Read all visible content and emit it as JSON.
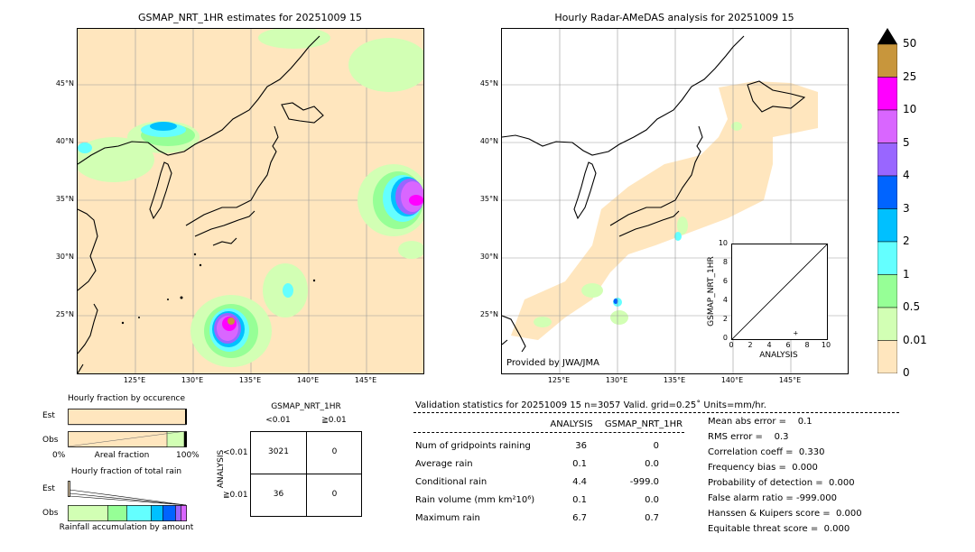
{
  "left_panel": {
    "title": "GSMAP_NRT_1HR estimates for 20251009 15",
    "lat_ticks": [
      "45°N",
      "40°N",
      "35°N",
      "30°N",
      "25°N"
    ],
    "lon_ticks": [
      "125°E",
      "130°E",
      "135°E",
      "140°E",
      "145°E"
    ]
  },
  "right_panel": {
    "title": "Hourly Radar-AMeDAS analysis for 20251009 15",
    "lat_ticks": [
      "45°N",
      "40°N",
      "35°N",
      "30°N",
      "25°N"
    ],
    "lon_ticks": [
      "125°E",
      "130°E",
      "135°E",
      "140°E",
      "145°E"
    ],
    "credit": "Provided by JWA/JMA"
  },
  "colorbar": {
    "labels": [
      "50",
      "25",
      "10",
      "5",
      "4",
      "3",
      "2",
      "1",
      "0.5",
      "0.01",
      "0"
    ],
    "colors": [
      "#c8963c",
      "#ff00ff",
      "#d966ff",
      "#9966ff",
      "#0064ff",
      "#00c0ff",
      "#64ffff",
      "#96ff96",
      "#d2ffb4",
      "#ffe6be"
    ]
  },
  "inset_scatter": {
    "xlabel": "ANALYSIS",
    "ylabel": "GSMAP_NRT_1HR",
    "ticks": [
      "0",
      "2",
      "4",
      "6",
      "8",
      "10"
    ]
  },
  "fraction_occurrence": {
    "title": "Hourly fraction by occurence",
    "row1": "Est",
    "row2": "Obs",
    "x_left": "0%",
    "x_mid": "Areal fraction",
    "x_right": "100%"
  },
  "fraction_total": {
    "title": "Hourly fraction of total rain",
    "row1": "Est",
    "row2": "Obs",
    "xlabel": "Rainfall accumulation by amount"
  },
  "contingency": {
    "title": "GSMAP_NRT_1HR",
    "col1": "<0.01",
    "col2": "≧0.01",
    "side": "ANALYSIS",
    "row1": "<0.01",
    "row2": "≧0.01",
    "cells": [
      "3021",
      "0",
      "36",
      "0"
    ]
  },
  "validation": {
    "header": "Validation statistics for 20251009 15  n=3057 Valid. grid=0.25˚ Units=mm/hr.",
    "col_analysis": "ANALYSIS",
    "col_gsmap": "GSMAP_NRT_1HR",
    "rows": [
      {
        "label": "Num of gridpoints raining",
        "a": "36",
        "g": "0"
      },
      {
        "label": "Average rain",
        "a": "0.1",
        "g": "0.0"
      },
      {
        "label": "Conditional rain",
        "a": "4.4",
        "g": "-999.0"
      },
      {
        "label": "Rain volume (mm km²10⁶)",
        "a": "0.1",
        "g": "0.0"
      },
      {
        "label": "Maximum rain",
        "a": "6.7",
        "g": "0.7"
      }
    ],
    "scores": [
      "Mean abs error =    0.1",
      "RMS error =    0.3",
      "Correlation coeff =  0.330",
      "Frequency bias =  0.000",
      "Probability of detection =  0.000",
      "False alarm ratio = -999.000",
      "Hanssen & Kuipers score =  0.000",
      "Equitable threat score =  0.000"
    ]
  },
  "chart_data": [
    {
      "type": "scatter",
      "title": "",
      "xlabel": "ANALYSIS",
      "ylabel": "GSMAP_NRT_1HR",
      "xlim": [
        0,
        10
      ],
      "ylim": [
        0,
        10
      ],
      "points": [
        {
          "x": 6.7,
          "y": 0.7
        }
      ]
    },
    {
      "type": "table",
      "title": "GSMAP_NRT_1HR",
      "columns": [
        "<0.01",
        "≧0.01"
      ],
      "rows": [
        "<0.01",
        "≧0.01"
      ],
      "values": [
        [
          3021,
          0
        ],
        [
          36,
          0
        ]
      ]
    }
  ]
}
